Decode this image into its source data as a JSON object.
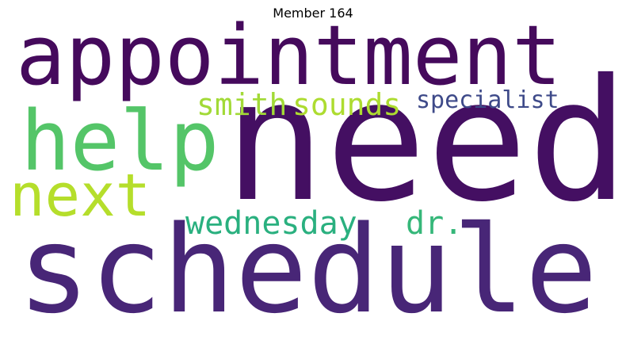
{
  "title": "Member 164",
  "words": [
    {
      "key": "need",
      "text": "need",
      "color": "#440f62"
    },
    {
      "key": "schedule",
      "text": "schedule",
      "color": "#482677"
    },
    {
      "key": "appointment",
      "text": "appointment",
      "color": "#450a5c"
    },
    {
      "key": "help",
      "text": "help",
      "color": "#54c568"
    },
    {
      "key": "next",
      "text": "next",
      "color": "#b5de2b"
    },
    {
      "key": "smith",
      "text": "smith",
      "color": "#a2da37"
    },
    {
      "key": "sounds",
      "text": "sounds",
      "color": "#addc30"
    },
    {
      "key": "specialist",
      "text": "specialist",
      "color": "#3e4a89"
    },
    {
      "key": "wednesday",
      "text": "wednesday",
      "color": "#2ab07f"
    },
    {
      "key": "dr",
      "text": "dr.",
      "color": "#35b779"
    }
  ]
}
